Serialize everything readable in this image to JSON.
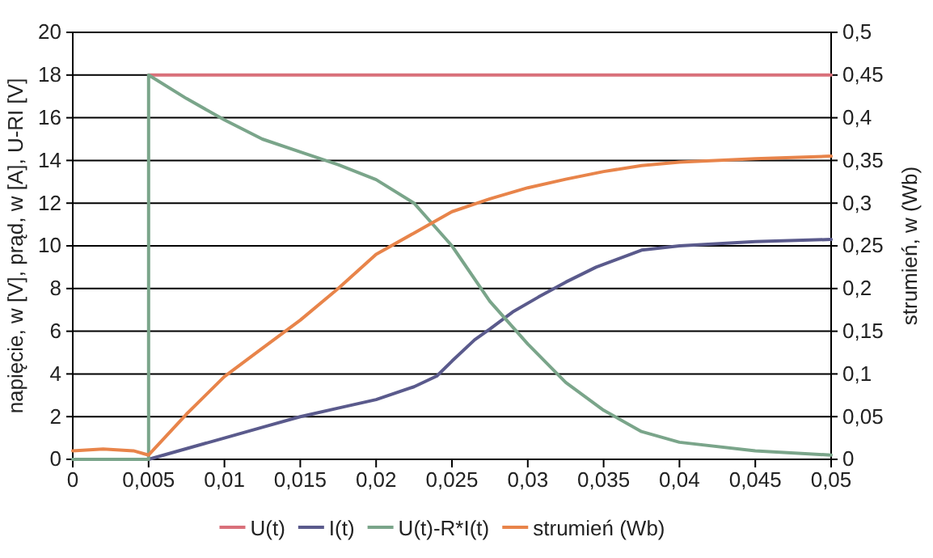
{
  "chart_data": {
    "type": "line",
    "xlabel": null,
    "ylabel": "napięcie, w [V], prąd, w [A], U-RI [V]",
    "y2label": "strumień, w (Wb)",
    "xlim": [
      0,
      0.05
    ],
    "xticks": [
      0,
      {
        "value": 0.005,
        "label": "0,005"
      },
      {
        "value": 0.01,
        "label": "0,01"
      },
      {
        "value": 0.015,
        "label": "0,015"
      },
      {
        "value": 0.02,
        "label": "0,02"
      },
      {
        "value": 0.025,
        "label": "0,025"
      },
      {
        "value": 0.03,
        "label": "0,03"
      },
      {
        "value": 0.035,
        "label": "0,035"
      },
      {
        "value": 0.04,
        "label": "0,04"
      },
      {
        "value": 0.045,
        "label": "0,045"
      },
      {
        "value": 0.05,
        "label": "0,05"
      }
    ],
    "ylim": [
      0,
      20
    ],
    "yticks": [
      0,
      2,
      4,
      6,
      8,
      10,
      12,
      14,
      16,
      18,
      20
    ],
    "y2lim": [
      0,
      0.5
    ],
    "y2ticks": [
      0,
      {
        "value": 0.05,
        "label": "0,05"
      },
      {
        "value": 0.1,
        "label": "0,1"
      },
      {
        "value": 0.15,
        "label": "0,15"
      },
      {
        "value": 0.2,
        "label": "0,2"
      },
      {
        "value": 0.25,
        "label": "0,25"
      },
      {
        "value": 0.3,
        "label": "0,3"
      },
      {
        "value": 0.35,
        "label": "0,35"
      },
      {
        "value": 0.4,
        "label": "0,4"
      },
      {
        "value": 0.45,
        "label": "0,45"
      },
      {
        "value": 0.5,
        "label": "0,5"
      }
    ],
    "grid": "y",
    "legend": "bottom",
    "marker": "none",
    "line_style": "solid",
    "series": [
      {
        "name": "U(t)",
        "color": "#d9707a",
        "x": [
          0.005,
          0.05
        ],
        "values": [
          18,
          18
        ]
      },
      {
        "name": "I(t)",
        "color": "#5a5a8c",
        "x": [
          0.005,
          0.0075,
          0.01,
          0.0125,
          0.015,
          0.0175,
          0.02,
          0.0225,
          0.024,
          0.025,
          0.0265,
          0.0275,
          0.029,
          0.0307,
          0.0325,
          0.0345,
          0.0375,
          0.04,
          0.045,
          0.05
        ],
        "values": [
          0,
          0.5,
          1.0,
          1.5,
          2.0,
          2.4,
          2.8,
          3.4,
          3.9,
          4.6,
          5.6,
          6.1,
          6.9,
          7.6,
          8.3,
          9.0,
          9.8,
          10.0,
          10.2,
          10.3
        ]
      },
      {
        "name": "U(t)-R*I(t)",
        "color": "#7aa58a",
        "x": [
          0,
          0.005,
          0.005,
          0.0075,
          0.01,
          0.0125,
          0.015,
          0.0175,
          0.02,
          0.0225,
          0.025,
          0.0275,
          0.03,
          0.0325,
          0.035,
          0.0375,
          0.04,
          0.045,
          0.05
        ],
        "values": [
          0,
          0,
          18,
          16.9,
          15.9,
          15.0,
          14.4,
          13.8,
          13.1,
          12.0,
          10.0,
          7.4,
          5.4,
          3.6,
          2.3,
          1.3,
          0.8,
          0.4,
          0.2
        ]
      },
      {
        "name": "strumień (Wb)",
        "color": "#e8844a",
        "axis": "y2",
        "x": [
          0,
          0.002,
          0.004,
          0.005,
          0.0075,
          0.01,
          0.0125,
          0.015,
          0.0175,
          0.02,
          0.0225,
          0.025,
          0.0275,
          0.03,
          0.0325,
          0.035,
          0.0375,
          0.04,
          0.045,
          0.05
        ],
        "values": [
          0.01,
          0.012,
          0.01,
          0.005,
          0.053,
          0.097,
          0.13,
          0.163,
          0.2,
          0.24,
          0.265,
          0.29,
          0.305,
          0.318,
          0.328,
          0.337,
          0.344,
          0.348,
          0.352,
          0.355
        ]
      }
    ]
  }
}
